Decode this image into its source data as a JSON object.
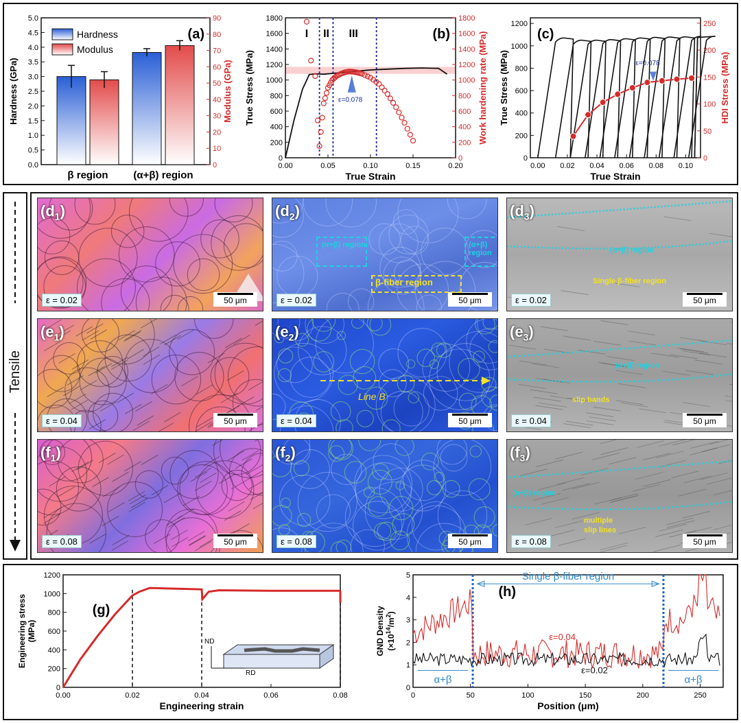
{
  "panel_a": {
    "label": "(a)",
    "legend": [
      "Hardness",
      "Modulus"
    ],
    "ylabel_left": "Hardness (GPa)",
    "ylabel_right": "Modulus (GPa)",
    "left_ticks": [
      "0.0",
      "0.5",
      "1.0",
      "1.5",
      "2.0",
      "2.5",
      "3.0",
      "3.5",
      "4.0",
      "4.5",
      "5.0"
    ],
    "right_ticks": [
      "0",
      "10",
      "20",
      "30",
      "40",
      "50",
      "60",
      "70",
      "80",
      "90"
    ],
    "categories": [
      "β region",
      "(α+β) region"
    ],
    "colors": {
      "hardness": "#2a5fd6",
      "modulus": "#e34b4b"
    }
  },
  "panel_b": {
    "label": "(b)",
    "xlabel": "True Strain",
    "ylabel_left": "True Stress (MPa)",
    "ylabel_right": "Work hardening rate (MPa)",
    "x_ticks": [
      "0.00",
      "0.05",
      "0.10",
      "0.15",
      "0.20"
    ],
    "y_ticks": [
      "0",
      "200",
      "400",
      "600",
      "800",
      "1000",
      "1200",
      "1400",
      "1600",
      "1800"
    ],
    "stages": [
      "I",
      "II",
      "III"
    ],
    "annotation": "ε=0.078"
  },
  "panel_c": {
    "label": "(c)",
    "xlabel": "True Strain",
    "ylabel_left": "True Stress (MPa)",
    "ylabel_right": "HDI Stress (MPa)",
    "x_ticks": [
      "0.00",
      "0.02",
      "0.04",
      "0.06",
      "0.08",
      "0.10"
    ],
    "y_ticks_left": [
      "0",
      "200",
      "400",
      "600",
      "800",
      "1000",
      "1200"
    ],
    "y_ticks_right": [
      "0",
      "50",
      "100",
      "150",
      "200",
      "250"
    ],
    "annotation": "ε=0.078"
  },
  "micro": {
    "side_label": "Tensile",
    "scale": "50 μm",
    "panels": [
      {
        "tag": "d",
        "sub": "1",
        "eps": "ε = 0.02"
      },
      {
        "tag": "d",
        "sub": "2",
        "eps": "ε = 0.02",
        "boxes": [
          "(α+β) region",
          "(α+β) region",
          "β-fiber region"
        ]
      },
      {
        "tag": "d",
        "sub": "3",
        "eps": "ε = 0.02",
        "texts": [
          "(α+β) region",
          "Single β-fiber region"
        ]
      },
      {
        "tag": "e",
        "sub": "1",
        "eps": "ε = 0.04"
      },
      {
        "tag": "e",
        "sub": "2",
        "eps": "ε = 0.04",
        "texts": [
          "Line B"
        ]
      },
      {
        "tag": "e",
        "sub": "3",
        "eps": "ε = 0.04",
        "texts": [
          "(α+β) region",
          "slip bands"
        ]
      },
      {
        "tag": "f",
        "sub": "1",
        "eps": "ε = 0.08"
      },
      {
        "tag": "f",
        "sub": "2",
        "eps": "ε = 0.08"
      },
      {
        "tag": "f",
        "sub": "3",
        "eps": "ε = 0.08",
        "texts": [
          "(α+β) region",
          "multiple",
          "slip lines"
        ]
      }
    ]
  },
  "panel_g": {
    "label": "(g)",
    "xlabel": "Engineering strain",
    "ylabel": [
      "Engineering stress",
      "(MPa)"
    ],
    "x_ticks": [
      "0.00",
      "0.02",
      "0.04",
      "0.06",
      "0.08"
    ],
    "y_ticks": [
      "0",
      "200",
      "400",
      "600",
      "800",
      "1000",
      "1200"
    ],
    "inset": [
      "ND",
      "RD"
    ]
  },
  "panel_h": {
    "label": "(h)",
    "xlabel": "Position (μm)",
    "ylabel": [
      "GND Density",
      "(×10",
      "14",
      "/m",
      "2",
      ")"
    ],
    "x_ticks": [
      "0",
      "50",
      "100",
      "150",
      "200",
      "250"
    ],
    "y_ticks": [
      "0",
      "1",
      "2",
      "3",
      "4",
      "5"
    ],
    "region_label": "Single β-fiber region",
    "ab_label": "α+β",
    "series_labels": [
      "ε=0.04",
      "ε=0.02"
    ]
  },
  "chart_data": [
    {
      "type": "bar",
      "panel": "a",
      "categories": [
        "β region",
        "(α+β) region"
      ],
      "series": [
        {
          "name": "Hardness",
          "axis": "left",
          "values": [
            3.0,
            3.82
          ],
          "errors": [
            0.38,
            0.13
          ]
        },
        {
          "name": "Modulus",
          "axis": "right",
          "values": [
            52,
            73
          ],
          "errors": [
            5,
            3
          ]
        }
      ],
      "ylim_left": [
        0,
        5
      ],
      "ylim_right": [
        0,
        90
      ]
    },
    {
      "type": "line",
      "panel": "b",
      "xlim": [
        0,
        0.2
      ],
      "ylim": [
        0,
        1800
      ],
      "stress": {
        "x": [
          0,
          0.01,
          0.02,
          0.028,
          0.035,
          0.045,
          0.06,
          0.08,
          0.1,
          0.12,
          0.14,
          0.16,
          0.18,
          0.19
        ],
        "y": [
          0,
          480,
          880,
          1070,
          1080,
          1075,
          1090,
          1110,
          1130,
          1140,
          1150,
          1155,
          1150,
          1075
        ]
      },
      "work_hardening": {
        "x": [
          0.025,
          0.03,
          0.035,
          0.038,
          0.04,
          0.045,
          0.05,
          0.055,
          0.06,
          0.065,
          0.07,
          0.075,
          0.08,
          0.085,
          0.09,
          0.1,
          0.11,
          0.12,
          0.13,
          0.14,
          0.15
        ],
        "y": [
          1750,
          1250,
          1050,
          480,
          150,
          700,
          900,
          1000,
          1050,
          1080,
          1100,
          1110,
          1105,
          1095,
          1080,
          1030,
          950,
          820,
          650,
          450,
          220
        ]
      },
      "stage_boundaries": [
        0.04,
        0.056,
        0.107
      ],
      "marker_strain": 0.078
    },
    {
      "type": "line",
      "panel": "c",
      "xlim": [
        -0.005,
        0.11
      ],
      "ylim_left": [
        0,
        1250
      ],
      "ylim_right": [
        0,
        260
      ],
      "hdi": {
        "x": [
          0.024,
          0.034,
          0.044,
          0.054,
          0.064,
          0.074,
          0.084,
          0.094,
          0.104
        ],
        "y": [
          40,
          80,
          103,
          118,
          130,
          140,
          143,
          146,
          148
        ]
      },
      "cycle_peaks": [
        1075,
        1055,
        1055,
        1060,
        1068,
        1075,
        1080,
        1083,
        1085,
        1088,
        1090
      ],
      "marker_strain": 0.078
    },
    {
      "type": "line",
      "panel": "g",
      "xlim": [
        0,
        0.08
      ],
      "ylim": [
        0,
        1200
      ],
      "x": [
        0,
        0.005,
        0.01,
        0.015,
        0.02,
        0.022,
        0.025,
        0.03,
        0.035,
        0.04,
        0.0402,
        0.042,
        0.045,
        0.06,
        0.08
      ],
      "y": [
        0,
        300,
        550,
        780,
        980,
        1020,
        1060,
        1055,
        1050,
        1045,
        940,
        1020,
        1035,
        1030,
        1030
      ]
    },
    {
      "type": "line",
      "panel": "h",
      "xlim": [
        0,
        270
      ],
      "ylim": [
        0,
        5
      ],
      "boundaries": [
        52,
        218
      ],
      "series": [
        {
          "name": "ε=0.04",
          "color": "#d62a2a"
        },
        {
          "name": "ε=0.02",
          "color": "#111111"
        }
      ]
    }
  ]
}
